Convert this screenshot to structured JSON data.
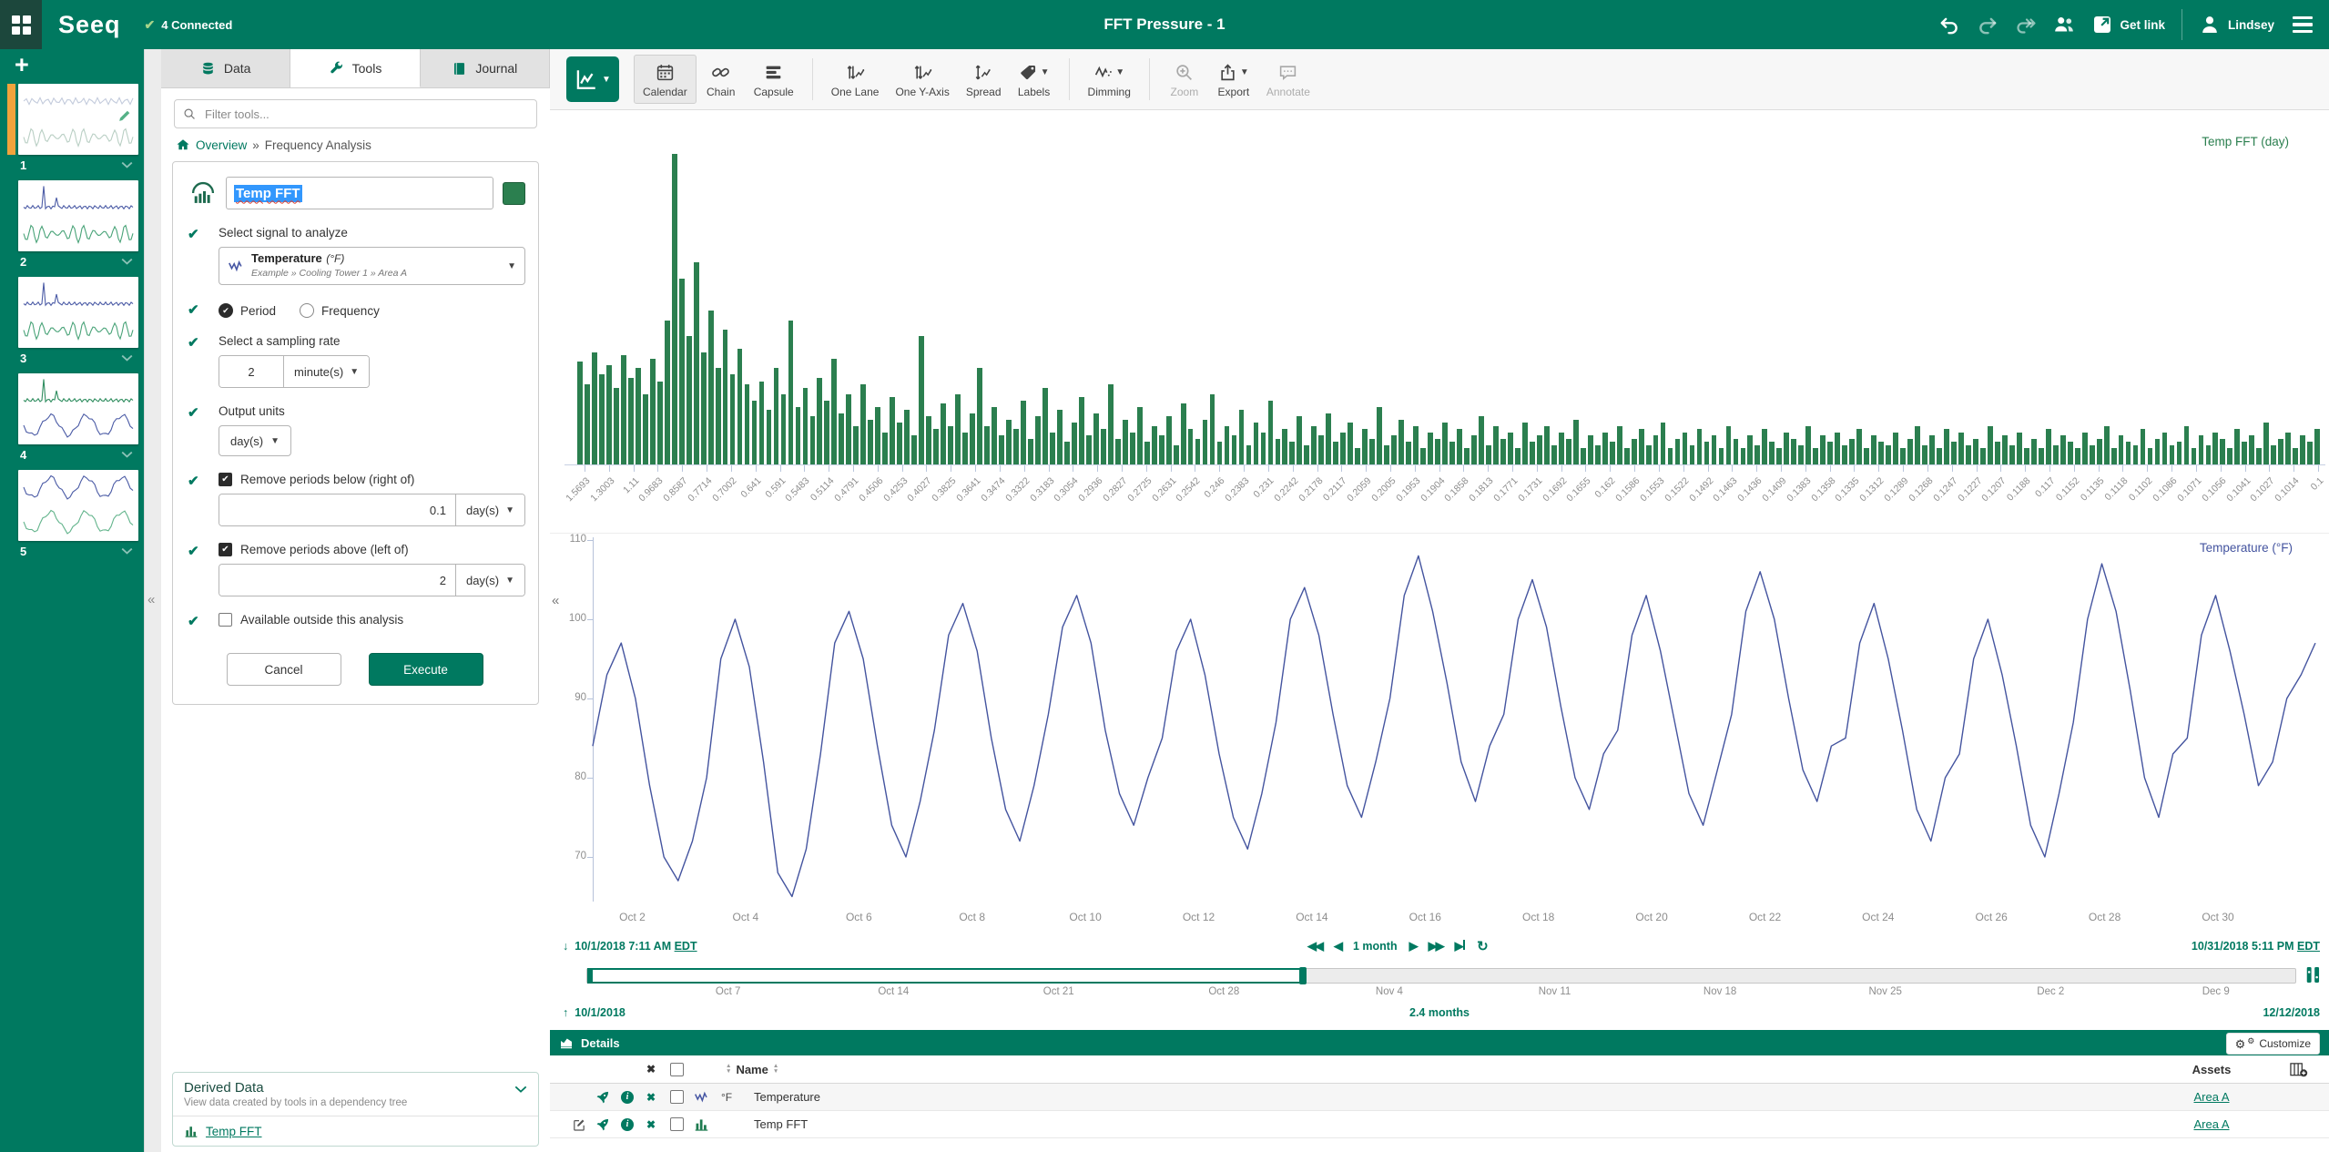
{
  "colors": {
    "brand_green": "#007960",
    "brand_dark_square": "#1c473c",
    "active_worksheet_bar": "#f2a33c",
    "fft_bar_green": "#2b7f4f",
    "temperature_line_blue": "#44549f",
    "selection_blue": "#3297fd"
  },
  "topbar": {
    "logo": "Seeq",
    "connection_status": "4 Connected",
    "title": "FFT Pressure - 1",
    "get_link_label": "Get link",
    "user_name": "Lindsey"
  },
  "sidebar": {
    "worksheets": [
      {
        "number": "1",
        "active": true
      },
      {
        "number": "2",
        "active": false
      },
      {
        "number": "3",
        "active": false
      },
      {
        "number": "4",
        "active": false
      },
      {
        "number": "5",
        "active": false
      }
    ]
  },
  "tools_panel": {
    "tabs": [
      {
        "label": "Data",
        "icon": "database-icon",
        "active": false
      },
      {
        "label": "Tools",
        "icon": "wrench-icon",
        "active": true
      },
      {
        "label": "Journal",
        "icon": "journal-icon",
        "active": false
      }
    ],
    "filter_placeholder": "Filter tools...",
    "breadcrumb": {
      "root": "Overview",
      "separator": "»",
      "current": "Frequency Analysis"
    },
    "form": {
      "name_value": "Temp FFT",
      "signal_label": "Select signal to analyze",
      "signal_value": "Temperature",
      "signal_unit": "(°F)",
      "signal_path": "Example » Cooling Tower 1 » Area A",
      "radio_options": [
        {
          "label": "Period",
          "selected": true
        },
        {
          "label": "Frequency",
          "selected": false
        }
      ],
      "sampling_label": "Select a sampling rate",
      "sampling_value": "2",
      "sampling_unit": "minute(s)",
      "output_units_label": "Output units",
      "output_units_value": "day(s)",
      "below_label": "Remove periods below (right of)",
      "below_checked": true,
      "below_value": "0.1",
      "below_unit": "day(s)",
      "above_label": "Remove periods above (left of)",
      "above_checked": true,
      "above_value": "2",
      "above_unit": "day(s)",
      "outside_label": "Available outside this analysis",
      "outside_checked": false,
      "cancel_label": "Cancel",
      "execute_label": "Execute"
    },
    "derived_data": {
      "title": "Derived Data",
      "subtitle": "View data created by tools in a dependency tree",
      "items": [
        {
          "label": "Temp FFT"
        }
      ]
    }
  },
  "chart_toolbar": {
    "items": [
      {
        "label": "Calendar",
        "icon": "calendar-icon",
        "active": true
      },
      {
        "label": "Chain",
        "icon": "chain-icon"
      },
      {
        "label": "Capsule",
        "icon": "capsule-icon",
        "group_end": true
      },
      {
        "label": "One Lane",
        "icon": "one-lane-icon"
      },
      {
        "label": "One Y-Axis",
        "icon": "one-y-axis-icon"
      },
      {
        "label": "Spread",
        "icon": "spread-icon"
      },
      {
        "label": "Labels",
        "icon": "labels-icon",
        "caret": true,
        "group_end": true
      },
      {
        "label": "Dimming",
        "icon": "dimming-icon",
        "caret": true,
        "group_end": true
      },
      {
        "label": "Zoom",
        "icon": "zoom-icon",
        "disabled": true
      },
      {
        "label": "Export",
        "icon": "export-icon",
        "caret": true
      },
      {
        "label": "Annotate",
        "icon": "annotate-icon",
        "disabled": true
      }
    ]
  },
  "range_bar": {
    "start": "10/1/2018 7:11 AM",
    "start_tz": "EDT",
    "step_label": "1 month",
    "end": "10/31/2018 5:11 PM",
    "end_tz": "EDT"
  },
  "timebar": {
    "start": "10/1/2018",
    "duration": "2.4 months",
    "end": "12/12/2018",
    "ticks": [
      "Oct 7",
      "Oct 14",
      "Oct 21",
      "Oct 28",
      "Nov 4",
      "Nov 11",
      "Nov 18",
      "Nov 25",
      "Dec 2",
      "Dec 9"
    ],
    "selected_fraction": 0.42
  },
  "details": {
    "title": "Details",
    "customize_label": "Customize",
    "name_header": "Name",
    "assets_header": "Assets",
    "rows": [
      {
        "name": "Temperature",
        "unit": "°F",
        "type": "signal",
        "asset": "Area A",
        "editable": false
      },
      {
        "name": "Temp FFT",
        "unit": "",
        "type": "histogram",
        "asset": "Area A",
        "editable": true
      }
    ]
  },
  "chart_data": [
    {
      "type": "bar",
      "title": "Temp FFT (day)",
      "color": "#2b7f4f",
      "grid": false,
      "legend_position": "top-right",
      "x_tick_labels": [
        "1.5693",
        "1.3003",
        "1.11",
        "0.9683",
        "0.8587",
        "0.7714",
        "0.7002",
        "0.641",
        "0.591",
        "0.5483",
        "0.5114",
        "0.4791",
        "0.4506",
        "0.4253",
        "0.4027",
        "0.3825",
        "0.3641",
        "0.3474",
        "0.3322",
        "0.3183",
        "0.3054",
        "0.2936",
        "0.2827",
        "0.2725",
        "0.2631",
        "0.2542",
        "0.246",
        "0.2383",
        "0.231",
        "0.2242",
        "0.2178",
        "0.2117",
        "0.2059",
        "0.2005",
        "0.1953",
        "0.1904",
        "0.1858",
        "0.1813",
        "0.1771",
        "0.1731",
        "0.1692",
        "0.1655",
        "0.162",
        "0.1586",
        "0.1553",
        "0.1522",
        "0.1492",
        "0.1463",
        "0.1436",
        "0.1409",
        "0.1383",
        "0.1358",
        "0.1335",
        "0.1312",
        "0.1289",
        "0.1268",
        "0.1247",
        "0.1227",
        "0.1207",
        "0.1188",
        "0.117",
        "0.1152",
        "0.1135",
        "0.1118",
        "0.1102",
        "0.1086",
        "0.1071",
        "0.1056",
        "0.1041",
        "0.1027",
        "0.1014",
        "0.1"
      ],
      "values": [
        32,
        25,
        35,
        28,
        31,
        24,
        34,
        27,
        30,
        22,
        33,
        26,
        45,
        97,
        58,
        40,
        63,
        35,
        48,
        30,
        42,
        28,
        36,
        25,
        20,
        26,
        17,
        30,
        22,
        45,
        18,
        24,
        15,
        27,
        20,
        33,
        16,
        22,
        12,
        25,
        14,
        18,
        10,
        21,
        13,
        17,
        9,
        40,
        15,
        11,
        19,
        12,
        22,
        10,
        16,
        30,
        12,
        18,
        9,
        14,
        11,
        20,
        8,
        15,
        24,
        10,
        17,
        7,
        13,
        21,
        9,
        16,
        11,
        25,
        8,
        14,
        10,
        18,
        7,
        12,
        9,
        15,
        6,
        19,
        11,
        8,
        14,
        22,
        7,
        12,
        9,
        17,
        6,
        13,
        10,
        20,
        8,
        11,
        7,
        15,
        6,
        12,
        9,
        16,
        7,
        10,
        13,
        5,
        11,
        8,
        18,
        6,
        9,
        14,
        7,
        12,
        5,
        10,
        8,
        13,
        7,
        11,
        5,
        9,
        15,
        6,
        12,
        8,
        10,
        5,
        13,
        7,
        9,
        12,
        6,
        10,
        8,
        14,
        5,
        9,
        6,
        10,
        7,
        12,
        5,
        8,
        11,
        6,
        9,
        13,
        5,
        8,
        10,
        6,
        11,
        7,
        9,
        5,
        12,
        8,
        5,
        9,
        6,
        11,
        7,
        5,
        10,
        8,
        6,
        12,
        5,
        9,
        7,
        10,
        6,
        8,
        11,
        5,
        9,
        7,
        6,
        10,
        5,
        8,
        12,
        6,
        9,
        5,
        11,
        7,
        10,
        6,
        8,
        5,
        12,
        7,
        9,
        6,
        10,
        5,
        8,
        5,
        11,
        6,
        9,
        7,
        5,
        10,
        6,
        8,
        12,
        5,
        9,
        7,
        6,
        11,
        5,
        8,
        10,
        6,
        7,
        12,
        5,
        9,
        6,
        10,
        8,
        5,
        11,
        7,
        9,
        5,
        13,
        6,
        8,
        10,
        5,
        9,
        7,
        11
      ]
    },
    {
      "type": "line",
      "title": "Temperature (°F)",
      "color": "#44549f",
      "grid": false,
      "legend_position": "top-right",
      "yticks": [
        110,
        100,
        90,
        80,
        70
      ],
      "ylim": [
        63,
        112
      ],
      "x_range_start": "10/1/2018 7:11 AM EDT",
      "x_range_end": "10/31/2018 5:11 PM EDT",
      "x_tick_labels": [
        "Oct 2",
        "Oct 4",
        "Oct 6",
        "Oct 8",
        "Oct 10",
        "Oct 12",
        "Oct 14",
        "Oct 16",
        "Oct 18",
        "Oct 20",
        "Oct 22",
        "Oct 24",
        "Oct 26",
        "Oct 28",
        "Oct 30"
      ],
      "values": [
        84,
        93,
        97,
        90,
        79,
        70,
        67,
        72,
        80,
        95,
        100,
        94,
        82,
        68,
        65,
        71,
        83,
        97,
        101,
        95,
        84,
        74,
        70,
        77,
        86,
        98,
        102,
        96,
        85,
        76,
        72,
        79,
        88,
        99,
        103,
        97,
        86,
        78,
        74,
        80,
        85,
        96,
        100,
        93,
        83,
        75,
        71,
        78,
        87,
        100,
        104,
        98,
        88,
        79,
        75,
        82,
        90,
        103,
        108,
        101,
        92,
        82,
        77,
        84,
        88,
        100,
        105,
        99,
        89,
        80,
        76,
        83,
        86,
        98,
        103,
        96,
        87,
        78,
        74,
        81,
        88,
        101,
        106,
        100,
        90,
        81,
        77,
        84,
        85,
        97,
        102,
        95,
        86,
        76,
        72,
        80,
        83,
        95,
        100,
        93,
        84,
        74,
        70,
        78,
        87,
        100,
        107,
        101,
        91,
        80,
        75,
        83,
        85,
        98,
        103,
        96,
        88,
        79,
        82,
        90,
        93,
        97
      ]
    }
  ]
}
